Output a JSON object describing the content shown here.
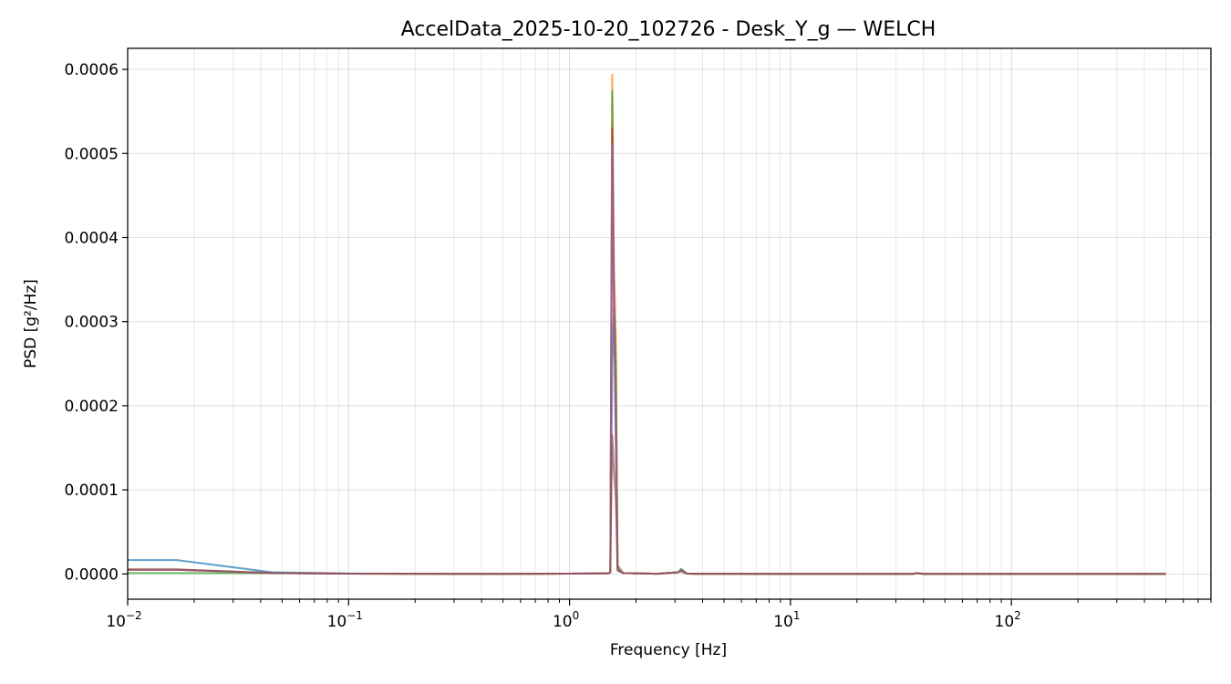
{
  "chart_data": {
    "type": "line",
    "title": "AccelData_2025-10-20_102726 - Desk_Y_g — WELCH",
    "xlabel": "Frequency [Hz]",
    "ylabel": "PSD [g²/Hz]",
    "xscale": "log",
    "xlim": [
      0.01,
      800
    ],
    "ylim": [
      -3e-05,
      0.000625
    ],
    "grid": true,
    "x_ticks": [
      {
        "value": 0.01,
        "base": "10",
        "exp": "−2"
      },
      {
        "value": 0.1,
        "base": "10",
        "exp": "−1"
      },
      {
        "value": 1,
        "base": "10",
        "exp": "0"
      },
      {
        "value": 10,
        "base": "10",
        "exp": "1"
      },
      {
        "value": 100,
        "base": "10",
        "exp": "2"
      }
    ],
    "y_ticks": [
      {
        "value": 0,
        "label": "0.0000"
      },
      {
        "value": 0.0001,
        "label": "0.0001"
      },
      {
        "value": 0.0002,
        "label": "0.0002"
      },
      {
        "value": 0.0003,
        "label": "0.0003"
      },
      {
        "value": 0.0004,
        "label": "0.0004"
      },
      {
        "value": 0.0005,
        "label": "0.0005"
      },
      {
        "value": 0.0006,
        "label": "0.0006"
      }
    ],
    "series": [
      {
        "color": "#1f77b4",
        "x": [
          0.01,
          0.0167,
          0.045,
          0.1,
          0.5,
          1.0,
          1.5,
          1.53,
          1.56,
          1.59,
          1.62,
          1.65,
          1.75,
          2.5,
          3.1,
          3.2,
          3.4,
          10,
          36,
          37,
          40,
          100,
          500
        ],
        "y": [
          1.65e-05,
          1.65e-05,
          2e-06,
          5e-07,
          2e-07,
          4e-07,
          1e-06,
          2e-06,
          0.00025,
          0.00032,
          0.00024,
          1e-05,
          1e-06,
          2e-07,
          2e-06,
          6e-06,
          3e-07,
          1e-07,
          1e-07,
          1e-06,
          1e-07,
          1e-07,
          1e-07
        ]
      },
      {
        "color": "#ff7f0e",
        "x": [
          0.01,
          0.0167,
          0.045,
          0.1,
          0.5,
          1.0,
          1.5,
          1.53,
          1.56,
          1.59,
          1.62,
          1.65,
          1.75,
          2.5,
          3.1,
          3.2,
          3.4,
          10,
          36,
          37,
          40,
          100,
          500
        ],
        "y": [
          5e-06,
          5e-06,
          1e-06,
          3e-07,
          1e-07,
          3e-07,
          8e-07,
          2e-06,
          0.000594,
          0.000365,
          0.00028,
          8e-06,
          1e-06,
          2e-07,
          2e-06,
          5e-06,
          3e-07,
          1e-07,
          1e-07,
          1e-06,
          1e-07,
          1e-07,
          1e-07
        ]
      },
      {
        "color": "#2ca02c",
        "x": [
          0.01,
          0.0167,
          0.045,
          0.1,
          0.5,
          1.0,
          1.5,
          1.53,
          1.56,
          1.59,
          1.62,
          1.65,
          1.75,
          2.5,
          3.1,
          3.2,
          3.4,
          10,
          36,
          37,
          40,
          100,
          500
        ],
        "y": [
          1e-06,
          1e-06,
          1e-06,
          3e-07,
          1e-07,
          3e-07,
          8e-07,
          2e-06,
          0.000574,
          0.000325,
          0.00025,
          6e-06,
          1e-06,
          2e-07,
          2e-06,
          5e-06,
          3e-07,
          1e-07,
          1e-07,
          1e-06,
          1e-07,
          1e-07,
          1e-07
        ]
      },
      {
        "color": "#d62728",
        "x": [
          0.01,
          0.0167,
          0.045,
          0.1,
          0.5,
          1.0,
          1.5,
          1.53,
          1.56,
          1.59,
          1.62,
          1.65,
          1.75,
          2.5,
          3.1,
          3.2,
          3.4,
          10,
          36,
          37,
          40,
          100,
          500
        ],
        "y": [
          5e-06,
          5e-06,
          1e-06,
          3e-07,
          1e-07,
          3e-07,
          8e-07,
          2e-06,
          0.00053,
          0.00032,
          0.00016,
          5e-06,
          1e-06,
          2e-07,
          2e-06,
          4e-06,
          3e-07,
          1e-07,
          1e-07,
          1e-06,
          1e-07,
          1e-07,
          1e-07
        ]
      },
      {
        "color": "#9467bd",
        "x": [
          0.01,
          0.0167,
          0.045,
          0.1,
          0.5,
          1.0,
          1.5,
          1.53,
          1.56,
          1.59,
          1.62,
          1.65,
          1.75,
          2.5,
          3.1,
          3.2,
          3.4,
          10,
          36,
          37,
          40,
          100,
          500
        ],
        "y": [
          5e-06,
          5e-06,
          1e-06,
          3e-07,
          1e-07,
          3e-07,
          8e-07,
          2e-06,
          0.00051,
          0.00028,
          0.00015,
          5e-06,
          1e-06,
          2e-07,
          2e-06,
          4e-06,
          3e-07,
          1e-07,
          1e-07,
          1e-06,
          1e-07,
          1e-07,
          1e-07
        ]
      },
      {
        "color": "#8c564b",
        "x": [
          0.01,
          0.0167,
          0.045,
          0.1,
          0.5,
          1.0,
          1.5,
          1.53,
          1.56,
          1.59,
          1.62,
          1.65,
          1.75,
          2.5,
          3.1,
          3.2,
          3.4,
          10,
          36,
          37,
          40,
          100,
          500
        ],
        "y": [
          5.5e-06,
          5.5e-06,
          1.2e-06,
          3e-07,
          1e-07,
          3e-07,
          8e-07,
          2e-06,
          0.000165,
          0.00012,
          9e-05,
          4e-06,
          1e-06,
          2e-07,
          2e-06,
          3e-06,
          3e-07,
          1e-07,
          1e-07,
          1e-06,
          1e-07,
          1e-07,
          1e-07
        ]
      }
    ]
  }
}
